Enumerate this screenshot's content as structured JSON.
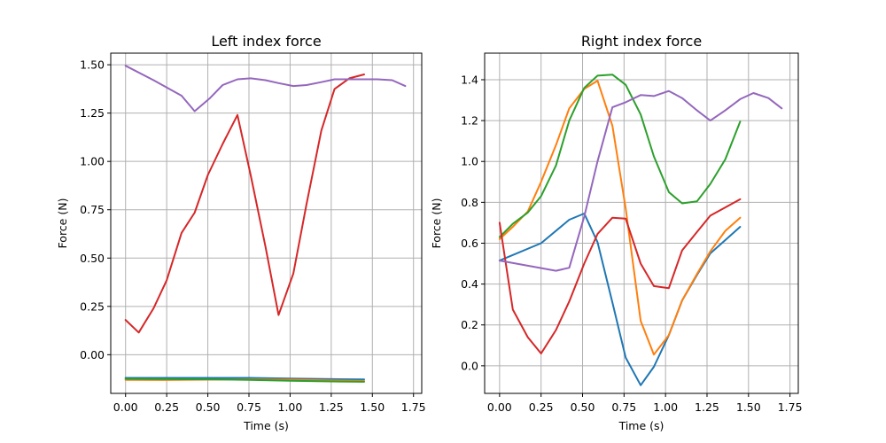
{
  "chart_data": [
    {
      "type": "line",
      "title": "Left index force",
      "xlabel": "Time (s)",
      "ylabel": "Force (N)",
      "xlim": [
        -0.09,
        1.8
      ],
      "ylim": [
        -0.2,
        1.56
      ],
      "xticks": [
        0.0,
        0.25,
        0.5,
        0.75,
        1.0,
        1.25,
        1.5,
        1.75
      ],
      "xtick_labels": [
        "0.00",
        "0.25",
        "0.50",
        "0.75",
        "1.00",
        "1.25",
        "1.50",
        "1.75"
      ],
      "yticks": [
        0.0,
        0.25,
        0.5,
        0.75,
        1.0,
        1.25,
        1.5
      ],
      "ytick_labels": [
        "0.00",
        "0.25",
        "0.50",
        "0.75",
        "1.00",
        "1.25",
        "1.50"
      ],
      "grid": true,
      "series": [
        {
          "color": "#1f77b4",
          "x": [
            0.0,
            0.25,
            0.5,
            0.75,
            1.0,
            1.25,
            1.45
          ],
          "y": [
            -0.12,
            -0.12,
            -0.12,
            -0.12,
            -0.123,
            -0.126,
            -0.128
          ]
        },
        {
          "color": "#ff7f0e",
          "x": [
            0.0,
            0.25,
            0.5,
            0.75,
            1.0,
            1.25,
            1.45
          ],
          "y": [
            -0.13,
            -0.131,
            -0.129,
            -0.128,
            -0.129,
            -0.133,
            -0.136
          ]
        },
        {
          "color": "#2ca02c",
          "x": [
            0.0,
            0.25,
            0.5,
            0.75,
            1.0,
            1.25,
            1.45
          ],
          "y": [
            -0.125,
            -0.126,
            -0.127,
            -0.13,
            -0.135,
            -0.138,
            -0.14
          ]
        },
        {
          "color": "#d62728",
          "x": [
            0.0,
            0.08,
            0.17,
            0.25,
            0.34,
            0.42,
            0.5,
            0.59,
            0.68,
            0.76,
            0.85,
            0.93,
            1.02,
            1.1,
            1.19,
            1.27,
            1.36,
            1.45
          ],
          "y": [
            0.18,
            0.115,
            0.24,
            0.385,
            0.63,
            0.735,
            0.93,
            1.09,
            1.24,
            0.93,
            0.56,
            0.205,
            0.42,
            0.78,
            1.16,
            1.375,
            1.43,
            1.45
          ]
        },
        {
          "color": "#9467bd",
          "x": [
            0.0,
            0.17,
            0.34,
            0.42,
            0.51,
            0.59,
            0.68,
            0.76,
            0.85,
            0.93,
            1.02,
            1.1,
            1.19,
            1.27,
            1.36,
            1.53,
            1.62,
            1.7
          ],
          "y": [
            1.495,
            1.42,
            1.34,
            1.26,
            1.325,
            1.395,
            1.425,
            1.43,
            1.42,
            1.405,
            1.39,
            1.395,
            1.41,
            1.425,
            1.425,
            1.425,
            1.42,
            1.39
          ]
        }
      ]
    },
    {
      "type": "line",
      "title": "Right index force",
      "xlabel": "Time (s)",
      "ylabel": "Force (N)",
      "xlim": [
        -0.09,
        1.8
      ],
      "ylim": [
        -0.135,
        1.53
      ],
      "xticks": [
        0.0,
        0.25,
        0.5,
        0.75,
        1.0,
        1.25,
        1.5,
        1.75
      ],
      "xtick_labels": [
        "0.00",
        "0.25",
        "0.50",
        "0.75",
        "1.00",
        "1.25",
        "1.50",
        "1.75"
      ],
      "yticks": [
        0.0,
        0.2,
        0.4,
        0.6,
        0.8,
        1.0,
        1.2,
        1.4
      ],
      "ytick_labels": [
        "0.0",
        "0.2",
        "0.4",
        "0.6",
        "0.8",
        "1.0",
        "1.2",
        "1.4"
      ],
      "grid": true,
      "series": [
        {
          "color": "#1f77b4",
          "x": [
            0.0,
            0.25,
            0.42,
            0.51,
            0.59,
            0.68,
            0.76,
            0.85,
            0.93,
            1.02,
            1.1,
            1.19,
            1.27,
            1.36,
            1.45
          ],
          "y": [
            0.515,
            0.6,
            0.715,
            0.745,
            0.605,
            0.31,
            0.04,
            -0.095,
            -0.005,
            0.15,
            0.32,
            0.445,
            0.55,
            0.615,
            0.68
          ]
        },
        {
          "color": "#ff7f0e",
          "x": [
            0.0,
            0.08,
            0.17,
            0.25,
            0.34,
            0.42,
            0.51,
            0.59,
            0.68,
            0.76,
            0.85,
            0.93,
            1.02,
            1.1,
            1.19,
            1.27,
            1.36,
            1.45
          ],
          "y": [
            0.62,
            0.68,
            0.755,
            0.9,
            1.08,
            1.26,
            1.355,
            1.395,
            1.175,
            0.77,
            0.22,
            0.055,
            0.15,
            0.32,
            0.45,
            0.56,
            0.66,
            0.725
          ]
        },
        {
          "color": "#2ca02c",
          "x": [
            0.0,
            0.08,
            0.17,
            0.25,
            0.34,
            0.42,
            0.51,
            0.59,
            0.68,
            0.76,
            0.85,
            0.93,
            1.02,
            1.1,
            1.19,
            1.27,
            1.36,
            1.45
          ],
          "y": [
            0.63,
            0.695,
            0.75,
            0.83,
            0.98,
            1.2,
            1.36,
            1.42,
            1.425,
            1.375,
            1.23,
            1.025,
            0.85,
            0.795,
            0.805,
            0.89,
            1.01,
            1.195
          ]
        },
        {
          "color": "#d62728",
          "x": [
            0.0,
            0.08,
            0.17,
            0.25,
            0.34,
            0.42,
            0.51,
            0.59,
            0.68,
            0.76,
            0.85,
            0.93,
            1.02,
            1.1,
            1.19,
            1.27,
            1.36,
            1.45
          ],
          "y": [
            0.7,
            0.275,
            0.14,
            0.06,
            0.175,
            0.315,
            0.5,
            0.645,
            0.725,
            0.72,
            0.5,
            0.39,
            0.38,
            0.565,
            0.655,
            0.735,
            0.775,
            0.815
          ]
        },
        {
          "color": "#9467bd",
          "x": [
            0.0,
            0.17,
            0.34,
            0.42,
            0.51,
            0.59,
            0.68,
            0.76,
            0.85,
            0.93,
            1.02,
            1.1,
            1.19,
            1.27,
            1.36,
            1.45,
            1.53,
            1.62,
            1.7
          ],
          "y": [
            0.515,
            0.49,
            0.465,
            0.48,
            0.73,
            1.0,
            1.265,
            1.29,
            1.325,
            1.32,
            1.345,
            1.31,
            1.25,
            1.2,
            1.25,
            1.305,
            1.335,
            1.31,
            1.26
          ]
        }
      ]
    }
  ]
}
